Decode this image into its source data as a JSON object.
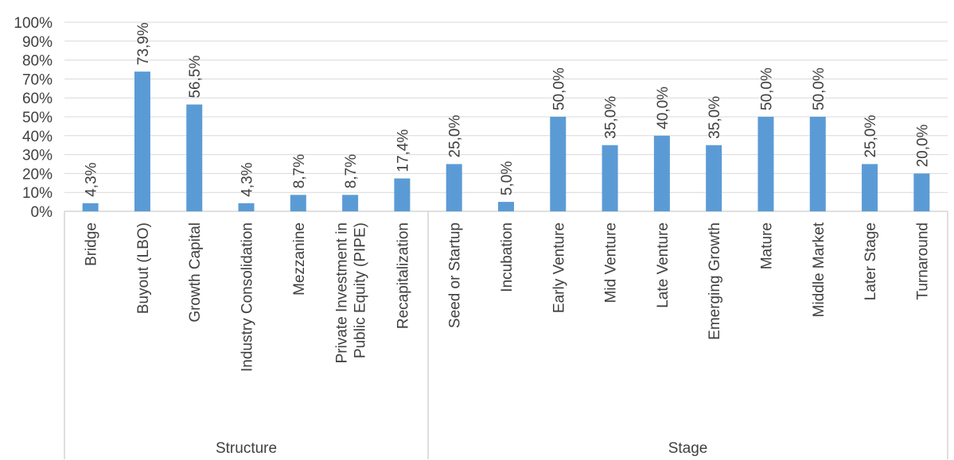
{
  "chart_data": {
    "type": "bar",
    "title": "",
    "xlabel": "",
    "ylabel": "",
    "ylim": [
      0,
      100
    ],
    "y_ticks": [
      "0%",
      "10%",
      "20%",
      "30%",
      "40%",
      "50%",
      "60%",
      "70%",
      "80%",
      "90%",
      "100%"
    ],
    "grid": true,
    "legend": "none",
    "bar_color": "#5b9bd5",
    "groups": [
      {
        "name": "Structure",
        "categories": [
          [
            "Bridge"
          ],
          [
            "Buyout (LBO)"
          ],
          [
            "Growth Capital"
          ],
          [
            "Industry Consolidation"
          ],
          [
            "Mezzanine"
          ],
          [
            "Private Investment in",
            "Public Equity (PIPE)"
          ],
          [
            "Recapitalization"
          ]
        ],
        "values": [
          4.3,
          73.9,
          56.5,
          4.3,
          8.7,
          8.7,
          17.4
        ],
        "value_labels": [
          "4,3%",
          "73,9%",
          "56,5%",
          "4,3%",
          "8,7%",
          "8,7%",
          "17,4%"
        ]
      },
      {
        "name": "Stage",
        "categories": [
          [
            "Seed or Startup"
          ],
          [
            "Incubation"
          ],
          [
            "Early Venture"
          ],
          [
            "Mid Venture"
          ],
          [
            "Late Venture"
          ],
          [
            "Emerging Growth"
          ],
          [
            "Mature"
          ],
          [
            "Middle Market"
          ],
          [
            "Later Stage"
          ],
          [
            "Turnaround"
          ]
        ],
        "values": [
          25.0,
          5.0,
          50.0,
          35.0,
          40.0,
          35.0,
          50.0,
          50.0,
          25.0,
          20.0
        ],
        "value_labels": [
          "25,0%",
          "5,0%",
          "50,0%",
          "35,0%",
          "40,0%",
          "35,0%",
          "50,0%",
          "50,0%",
          "25,0%",
          "20,0%"
        ]
      }
    ]
  }
}
